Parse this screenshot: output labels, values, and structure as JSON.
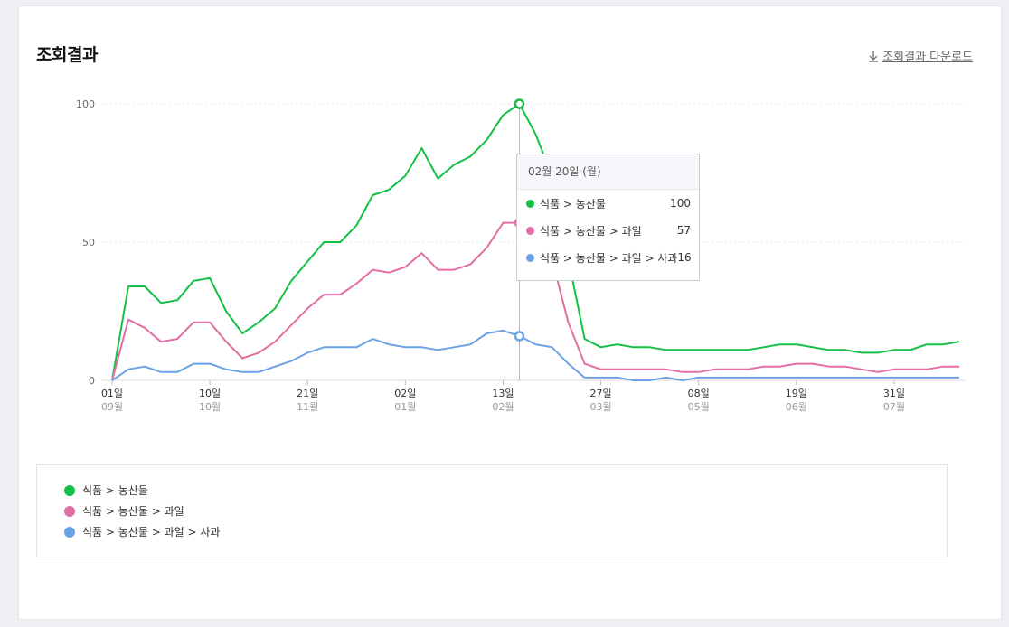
{
  "header": {
    "title": "조회결과",
    "download_label": "조회결과 다운로드"
  },
  "tooltip": {
    "date": "02월 20일 (월)",
    "rows": [
      {
        "name": "식품 > 농산물",
        "value": "100"
      },
      {
        "name": "식품 > 농산물 > 과일",
        "value": "57"
      },
      {
        "name": "식품 > 농산물 > 과일 > 사과",
        "value": "16"
      }
    ]
  },
  "colors": {
    "series1": "#13c045",
    "series2": "#e26ea4",
    "series3": "#6aa2e6",
    "grid": "#e5e7ea",
    "crosshair": "#b8b8b8"
  },
  "chart_data": {
    "type": "line",
    "ylim": [
      0,
      100
    ],
    "y_ticks": [
      0,
      50,
      100
    ],
    "grid": true,
    "legend_position": "bottom",
    "x_tick_labels": [
      {
        "day": "01일",
        "month": "09월"
      },
      {
        "day": "10일",
        "month": "10월"
      },
      {
        "day": "21일",
        "month": "11월"
      },
      {
        "day": "02일",
        "month": "01월"
      },
      {
        "day": "13일",
        "month": "02월"
      },
      {
        "day": "27일",
        "month": "03월"
      },
      {
        "day": "08일",
        "month": "05월"
      },
      {
        "day": "19일",
        "month": "06월"
      },
      {
        "day": "31일",
        "month": "07월"
      }
    ],
    "x_tick_index": [
      0,
      6,
      12,
      18,
      24,
      30,
      36,
      42,
      48
    ],
    "highlight_index": 25,
    "series": [
      {
        "name": "식품 > 농산물",
        "values": [
          0,
          34,
          34,
          28,
          29,
          36,
          37,
          25,
          17,
          21,
          26,
          36,
          43,
          50,
          50,
          56,
          67,
          69,
          74,
          84,
          73,
          78,
          81,
          87,
          96,
          100,
          89,
          74,
          44,
          15,
          12,
          13,
          12,
          12,
          11,
          11,
          11,
          11,
          11,
          11,
          12,
          13,
          13,
          12,
          11,
          11,
          10,
          10,
          11,
          11,
          13,
          13,
          14
        ]
      },
      {
        "name": "식품 > 농산물 > 과일",
        "values": [
          0,
          22,
          19,
          14,
          15,
          21,
          21,
          14,
          8,
          10,
          14,
          20,
          26,
          31,
          31,
          35,
          40,
          39,
          41,
          46,
          40,
          40,
          42,
          48,
          57,
          57,
          51,
          44,
          21,
          6,
          4,
          4,
          4,
          4,
          4,
          3,
          3,
          4,
          4,
          4,
          5,
          5,
          6,
          6,
          5,
          5,
          4,
          3,
          4,
          4,
          4,
          5,
          5
        ]
      },
      {
        "name": "식품 > 농산물 > 과일 > 사과",
        "values": [
          0,
          4,
          5,
          3,
          3,
          6,
          6,
          4,
          3,
          3,
          5,
          7,
          10,
          12,
          12,
          12,
          15,
          13,
          12,
          12,
          11,
          12,
          13,
          17,
          18,
          16,
          13,
          12,
          6,
          1,
          1,
          1,
          0,
          0,
          1,
          0,
          1,
          1,
          1,
          1,
          1,
          1,
          1,
          1,
          1,
          1,
          1,
          1,
          1,
          1,
          1,
          1,
          1
        ]
      }
    ]
  }
}
